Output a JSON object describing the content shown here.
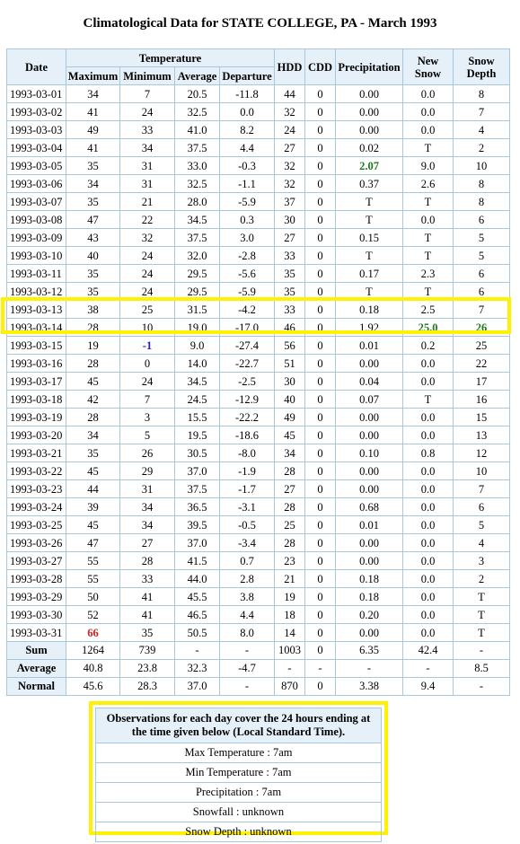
{
  "title": "Climatological Data for STATE COLLEGE, PA - March 1993",
  "headers": {
    "date": "Date",
    "temperature": "Temperature",
    "maximum": "Maximum",
    "minimum": "Minimum",
    "average": "Average",
    "departure": "Departure",
    "hdd": "HDD",
    "cdd": "CDD",
    "precipitation": "Precipitation",
    "new_snow": "New Snow",
    "snow_depth": "Snow Depth"
  },
  "rows": [
    [
      "1993-03-01",
      "34",
      "7",
      "20.5",
      "-11.8",
      "44",
      "0",
      "0.00",
      "0.0",
      "8"
    ],
    [
      "1993-03-02",
      "41",
      "24",
      "32.5",
      "0.0",
      "32",
      "0",
      "0.00",
      "0.0",
      "7"
    ],
    [
      "1993-03-03",
      "49",
      "33",
      "41.0",
      "8.2",
      "24",
      "0",
      "0.00",
      "0.0",
      "4"
    ],
    [
      "1993-03-04",
      "41",
      "34",
      "37.5",
      "4.4",
      "27",
      "0",
      "0.02",
      "T",
      "2"
    ],
    [
      "1993-03-05",
      "35",
      "31",
      "33.0",
      "-0.3",
      "32",
      "0",
      "2.07",
      "9.0",
      "10"
    ],
    [
      "1993-03-06",
      "34",
      "31",
      "32.5",
      "-1.1",
      "32",
      "0",
      "0.37",
      "2.6",
      "8"
    ],
    [
      "1993-03-07",
      "35",
      "21",
      "28.0",
      "-5.9",
      "37",
      "0",
      "T",
      "T",
      "8"
    ],
    [
      "1993-03-08",
      "47",
      "22",
      "34.5",
      "0.3",
      "30",
      "0",
      "T",
      "0.0",
      "6"
    ],
    [
      "1993-03-09",
      "43",
      "32",
      "37.5",
      "3.0",
      "27",
      "0",
      "0.15",
      "T",
      "5"
    ],
    [
      "1993-03-10",
      "40",
      "24",
      "32.0",
      "-2.8",
      "33",
      "0",
      "T",
      "T",
      "5"
    ],
    [
      "1993-03-11",
      "35",
      "24",
      "29.5",
      "-5.6",
      "35",
      "0",
      "0.17",
      "2.3",
      "6"
    ],
    [
      "1993-03-12",
      "35",
      "24",
      "29.5",
      "-5.9",
      "35",
      "0",
      "T",
      "T",
      "6"
    ],
    [
      "1993-03-13",
      "38",
      "25",
      "31.5",
      "-4.2",
      "33",
      "0",
      "0.18",
      "2.5",
      "7"
    ],
    [
      "1993-03-14",
      "28",
      "10",
      "19.0",
      "-17.0",
      "46",
      "0",
      "1.92",
      "25.0",
      "26"
    ],
    [
      "1993-03-15",
      "19",
      "-1",
      "9.0",
      "-27.4",
      "56",
      "0",
      "0.01",
      "0.2",
      "25"
    ],
    [
      "1993-03-16",
      "28",
      "0",
      "14.0",
      "-22.7",
      "51",
      "0",
      "0.00",
      "0.0",
      "22"
    ],
    [
      "1993-03-17",
      "45",
      "24",
      "34.5",
      "-2.5",
      "30",
      "0",
      "0.04",
      "0.0",
      "17"
    ],
    [
      "1993-03-18",
      "42",
      "7",
      "24.5",
      "-12.9",
      "40",
      "0",
      "0.07",
      "T",
      "16"
    ],
    [
      "1993-03-19",
      "28",
      "3",
      "15.5",
      "-22.2",
      "49",
      "0",
      "0.00",
      "0.0",
      "15"
    ],
    [
      "1993-03-20",
      "34",
      "5",
      "19.5",
      "-18.6",
      "45",
      "0",
      "0.00",
      "0.0",
      "13"
    ],
    [
      "1993-03-21",
      "35",
      "26",
      "30.5",
      "-8.0",
      "34",
      "0",
      "0.10",
      "0.8",
      "12"
    ],
    [
      "1993-03-22",
      "45",
      "29",
      "37.0",
      "-1.9",
      "28",
      "0",
      "0.00",
      "0.0",
      "10"
    ],
    [
      "1993-03-23",
      "44",
      "31",
      "37.5",
      "-1.7",
      "27",
      "0",
      "0.00",
      "0.0",
      "7"
    ],
    [
      "1993-03-24",
      "39",
      "34",
      "36.5",
      "-3.1",
      "28",
      "0",
      "0.68",
      "0.0",
      "6"
    ],
    [
      "1993-03-25",
      "45",
      "34",
      "39.5",
      "-0.5",
      "25",
      "0",
      "0.01",
      "0.0",
      "5"
    ],
    [
      "1993-03-26",
      "47",
      "27",
      "37.0",
      "-3.4",
      "28",
      "0",
      "0.00",
      "0.0",
      "4"
    ],
    [
      "1993-03-27",
      "55",
      "28",
      "41.5",
      "0.7",
      "23",
      "0",
      "0.00",
      "0.0",
      "3"
    ],
    [
      "1993-03-28",
      "55",
      "33",
      "44.0",
      "2.8",
      "21",
      "0",
      "0.18",
      "0.0",
      "2"
    ],
    [
      "1993-03-29",
      "50",
      "41",
      "45.5",
      "3.8",
      "19",
      "0",
      "0.18",
      "0.0",
      "T"
    ],
    [
      "1993-03-30",
      "52",
      "41",
      "46.5",
      "4.4",
      "18",
      "0",
      "0.20",
      "0.0",
      "T"
    ],
    [
      "1993-03-31",
      "66",
      "35",
      "50.5",
      "8.0",
      "14",
      "0",
      "0.00",
      "0.0",
      "T"
    ]
  ],
  "summary": [
    [
      "Sum",
      "1264",
      "739",
      "-",
      "-",
      "1003",
      "0",
      "6.35",
      "42.4",
      "-"
    ],
    [
      "Average",
      "40.8",
      "23.8",
      "32.3",
      "-4.7",
      "-",
      "-",
      "-",
      "-",
      "8.5"
    ],
    [
      "Normal",
      "45.6",
      "28.3",
      "37.0",
      "-",
      "870",
      "0",
      "3.38",
      "9.4",
      "-"
    ]
  ],
  "highlights": {
    "green": "#1c7a1c",
    "blue": "#2222cc",
    "red": "#cc2222",
    "box": "#fff200"
  },
  "notes": {
    "header": "Observations for each day cover the 24 hours ending at the time given below (Local Standard Time).",
    "items": [
      "Max Temperature : 7am",
      "Min Temperature : 7am",
      "Precipitation : 7am",
      "Snowfall : unknown",
      "Snow Depth : unknown"
    ]
  }
}
